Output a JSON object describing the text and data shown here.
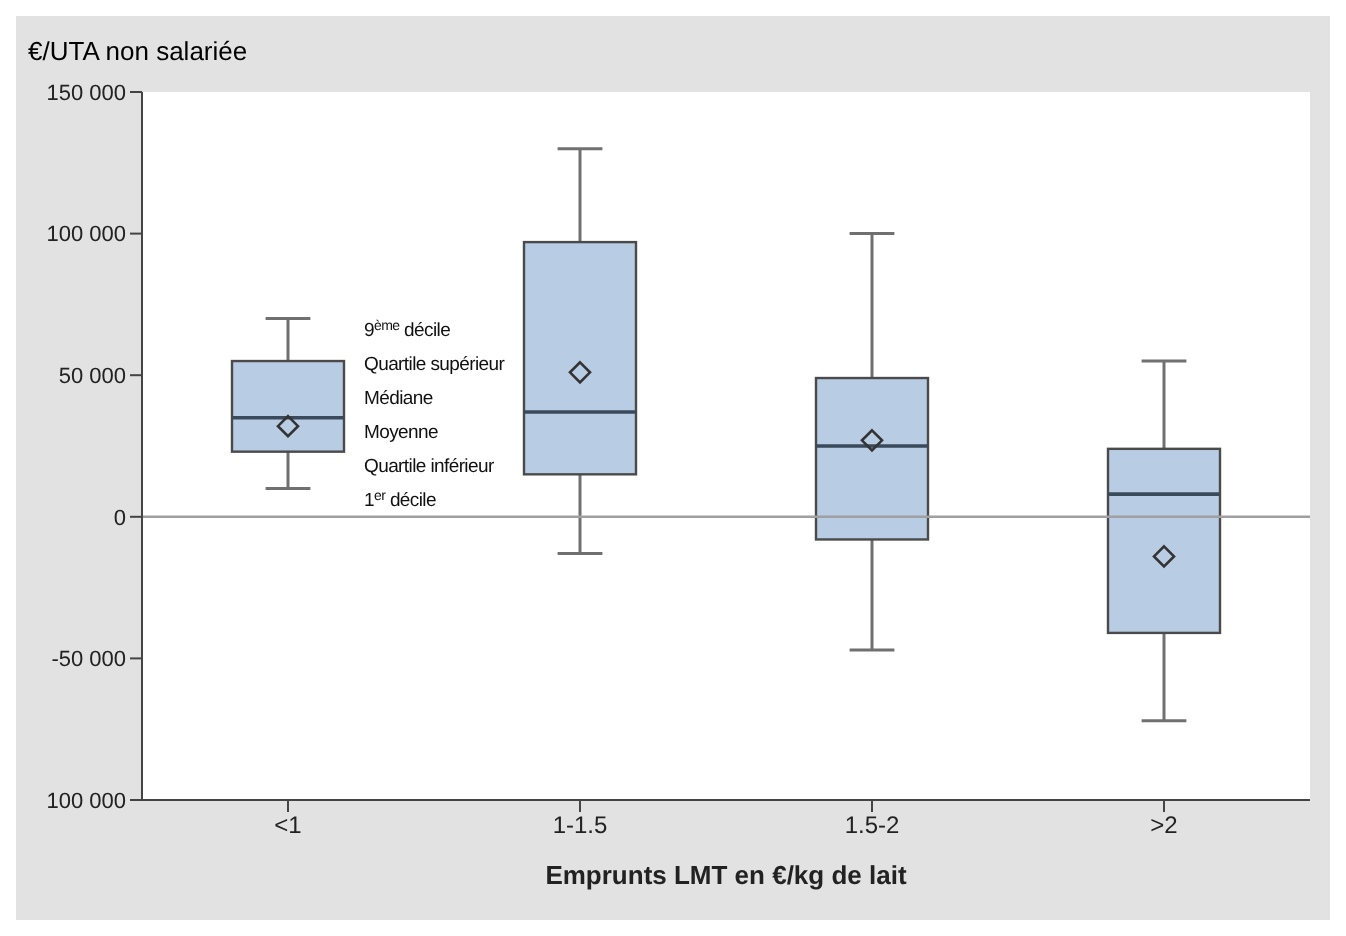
{
  "chart_data": {
    "type": "box",
    "ylabel": "€/UTA non salariée",
    "xlabel": "Emprunts LMT en €/kg de lait",
    "categories": [
      "<1",
      "1-1.5",
      "1.5-2",
      ">2"
    ],
    "series": [
      {
        "color": "#b8cce4",
        "marker": "diamond",
        "boxes": [
          {
            "low": 10000,
            "q1": 23000,
            "median": 35000,
            "q3": 55000,
            "high": 70000,
            "mean": 32000
          },
          {
            "low": -13000,
            "q1": 15000,
            "median": 37000,
            "q3": 97000,
            "high": 130000,
            "mean": 51000
          },
          {
            "low": -47000,
            "q1": -8000,
            "median": 25000,
            "q3": 49000,
            "high": 100000,
            "mean": 27000
          },
          {
            "low": -72000,
            "q1": -41000,
            "median": 8000,
            "q3": 24000,
            "high": 55000,
            "mean": -14000
          }
        ]
      }
    ],
    "ylim": [
      -100000,
      150000
    ],
    "yticks": [
      {
        "value": -100000,
        "label": "100 000"
      },
      {
        "value": -50000,
        "label": "-50 000"
      },
      {
        "value": 0,
        "label": "0"
      },
      {
        "value": 50000,
        "label": "50 000"
      },
      {
        "value": 100000,
        "label": "100 000"
      },
      {
        "value": 150000,
        "label": "150 000"
      }
    ],
    "ref_lines": [
      {
        "axis": "y",
        "value": 0,
        "color": "#a0a0a0"
      }
    ],
    "annotations": [
      "9$^{ème}$ décile",
      "Quartile supérieur",
      "Médiane",
      "Moyenne",
      "Quartile inférieur",
      "1$^{er}$ décile"
    ]
  }
}
